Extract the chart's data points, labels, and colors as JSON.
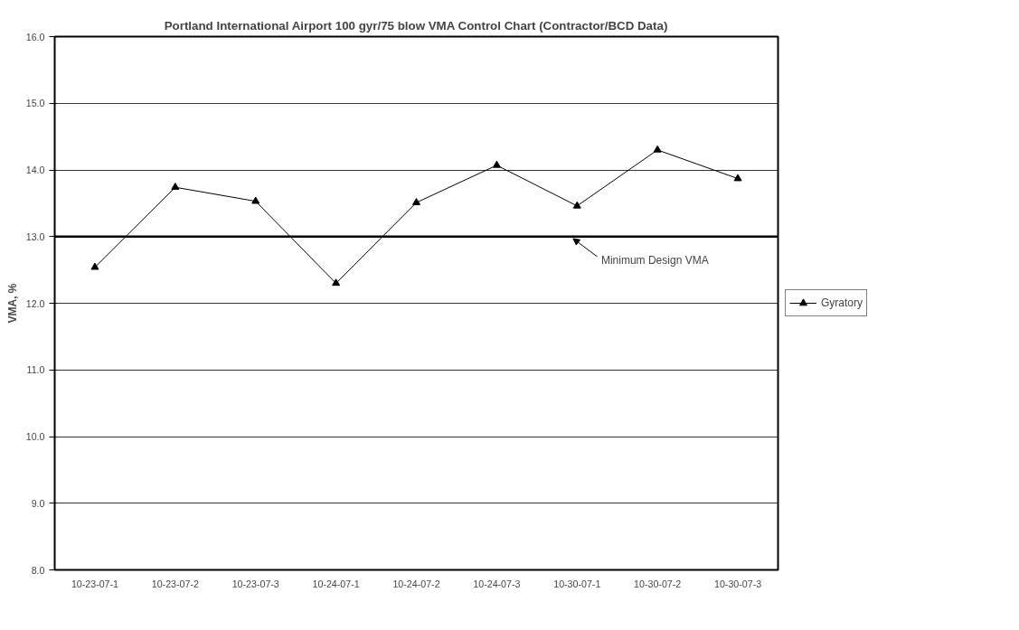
{
  "chart_data": {
    "type": "line",
    "title": "Portland International Airport 100 gyr/75 blow VMA Control Chart (Contractor/BCD Data)",
    "ylabel": "VMA, %",
    "categories": [
      "10-23-07-1",
      "10-23-07-2",
      "10-23-07-3",
      "10-24-07-1",
      "10-24-07-2",
      "10-24-07-3",
      "10-30-07-1",
      "10-30-07-2",
      "10-30-07-3"
    ],
    "series": [
      {
        "name": "Gyratory",
        "color": "#000000",
        "values": [
          12.54,
          13.74,
          13.53,
          12.3,
          13.51,
          14.07,
          13.46,
          14.3,
          13.87
        ]
      }
    ],
    "ylim": [
      8.0,
      16.0
    ],
    "yticks": [
      {
        "value": 8,
        "label": "8.0"
      },
      {
        "value": 9,
        "label": "9.0"
      },
      {
        "value": 10,
        "label": "10.0"
      },
      {
        "value": 11,
        "label": "11.0"
      },
      {
        "value": 12,
        "label": "12.0"
      },
      {
        "value": 13,
        "label": "13.0"
      },
      {
        "value": 14,
        "label": "14.0"
      },
      {
        "value": 15,
        "label": "15.0"
      },
      {
        "value": 16,
        "label": "16.0"
      }
    ],
    "ref_lines": [
      {
        "axis": "y",
        "value": 13.0,
        "label": "Minimum Design VMA",
        "color": "#000000"
      }
    ],
    "grid": "y",
    "legend": "right",
    "marker": "triangle",
    "line_style": "solid"
  }
}
